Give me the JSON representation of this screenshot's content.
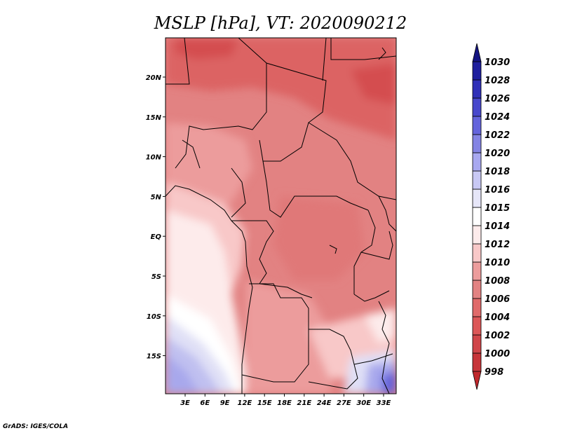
{
  "title": "MSLP [hPa], VT: 2020090212",
  "footer": "GrADS: IGES/COLA",
  "map": {
    "lat_labels": [
      "20N",
      "15N",
      "10N",
      "5N",
      "EQ",
      "5S",
      "10S",
      "15S"
    ],
    "lon_labels": [
      "3E",
      "6E",
      "9E",
      "12E",
      "15E",
      "18E",
      "21E",
      "24E",
      "27E",
      "30E",
      "33E"
    ]
  },
  "colorbar": {
    "levels": [
      "998",
      "1000",
      "1002",
      "1004",
      "1006",
      "1008",
      "1010",
      "1012",
      "1014",
      "1015",
      "1016",
      "1018",
      "1020",
      "1022",
      "1024",
      "1026",
      "1028",
      "1030"
    ],
    "colors": [
      "#c0282c",
      "#c7353a",
      "#d0464a",
      "#dc5758",
      "#e06a6a",
      "#e28282",
      "#ec9c9c",
      "#f8c8c8",
      "#fdebeb",
      "#ffffff",
      "#e6e6f8",
      "#c8c8f4",
      "#a8a8f0",
      "#8484e4",
      "#6464dc",
      "#4848cc",
      "#3030b8",
      "#1f1f9e",
      "#141482"
    ]
  }
}
